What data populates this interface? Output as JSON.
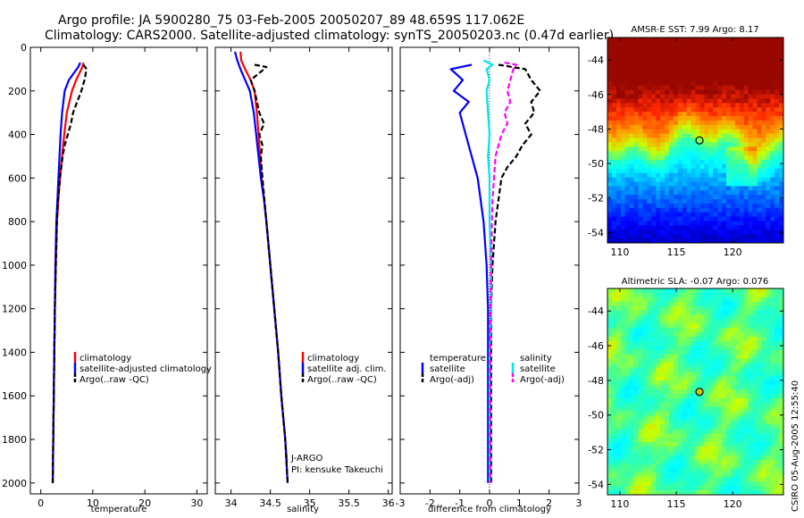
{
  "header": {
    "line1": "Argo profile: JA 5900280_75 03-Feb-2005 20050207_89 48.659S 117.062E",
    "line2": "Climatology: CARS2000. Satellite-adjusted climatology: synTS_20050203.nc (0.47d earlier)"
  },
  "side_label": "CSIRO 05-Aug-2005 12:55:40",
  "colors": {
    "climatology": "#ff0000",
    "satellite": "#0000ff",
    "argo": "#000000",
    "salinity_satellite": "#00e5ee",
    "salinity_argo": "#ff00ff"
  },
  "chart_data": [
    {
      "type": "line",
      "id": "temperature",
      "xlabel": "temperature",
      "ylabel": "",
      "xlim": [
        -2,
        32
      ],
      "ylim": [
        2050,
        0
      ],
      "xticks": [
        0,
        10,
        20,
        30
      ],
      "yticks": [
        0,
        200,
        400,
        600,
        800,
        1000,
        1200,
        1400,
        1600,
        1800,
        2000
      ],
      "series": [
        {
          "name": "climatology",
          "color": "#ff0000",
          "dash": "",
          "depth": [
            70,
            90,
            110,
            150,
            200,
            300,
            400,
            500,
            600,
            700,
            800,
            1000,
            1200,
            1400,
            1600,
            1800,
            2000
          ],
          "values": [
            8.2,
            8.0,
            7.6,
            6.8,
            6.0,
            5.0,
            4.5,
            4.1,
            3.7,
            3.4,
            3.1,
            2.9,
            2.7,
            2.6,
            2.5,
            2.4,
            2.3
          ]
        },
        {
          "name": "satellite-adjusted climatology",
          "color": "#0000ff",
          "dash": "",
          "depth": [
            70,
            90,
            110,
            150,
            200,
            300,
            400,
            500,
            600,
            700,
            800,
            1000,
            1200,
            1400,
            1600,
            1800,
            2000
          ],
          "values": [
            7.6,
            7.2,
            6.6,
            5.4,
            4.6,
            4.1,
            3.8,
            3.6,
            3.4,
            3.2,
            3.0,
            2.8,
            2.7,
            2.6,
            2.5,
            2.4,
            2.3
          ]
        },
        {
          "name": "Argo(..raw -QC)",
          "color": "#000000",
          "dash": "6,3",
          "depth": [
            80,
            100,
            150,
            200,
            250,
            300,
            350,
            400,
            450,
            500,
            600,
            700,
            800,
            1000,
            1200,
            1400,
            1600,
            1800,
            2000
          ],
          "values": [
            8.2,
            8.8,
            8.4,
            7.8,
            7.0,
            6.2,
            5.8,
            5.2,
            4.6,
            4.2,
            3.7,
            3.3,
            3.1,
            2.9,
            2.7,
            2.6,
            2.5,
            2.4,
            2.3
          ]
        }
      ],
      "legend": [
        "climatology",
        "satellite-adjusted climatology",
        "Argo(..raw -QC)"
      ]
    },
    {
      "type": "line",
      "id": "salinity",
      "xlabel": "salinity",
      "ylabel": "",
      "xlim": [
        33.8,
        36.05
      ],
      "ylim": [
        2050,
        0
      ],
      "xticks": [
        34,
        34.5,
        35,
        35.5,
        36
      ],
      "series": [
        {
          "name": "climatology",
          "color": "#ff0000",
          "dash": "",
          "depth": [
            20,
            60,
            100,
            150,
            200,
            300,
            400,
            500,
            600,
            700,
            800,
            1000,
            1200,
            1400,
            1600,
            1800,
            1900
          ],
          "values": [
            34.12,
            34.13,
            34.18,
            34.25,
            34.3,
            34.33,
            34.35,
            34.37,
            34.39,
            34.42,
            34.45,
            34.5,
            34.55,
            34.6,
            34.64,
            34.69,
            34.71
          ]
        },
        {
          "name": "satellite adj. clim.",
          "color": "#0000ff",
          "dash": "",
          "depth": [
            20,
            60,
            100,
            150,
            200,
            300,
            400,
            500,
            600,
            700,
            800,
            1000,
            1200,
            1400,
            1600,
            1800,
            2000
          ],
          "values": [
            34.05,
            34.08,
            34.12,
            34.18,
            34.24,
            34.29,
            34.32,
            34.35,
            34.38,
            34.42,
            34.45,
            34.5,
            34.55,
            34.6,
            34.64,
            34.69,
            34.72
          ]
        },
        {
          "name": "Argo(..raw -QC)",
          "color": "#000000",
          "dash": "6,3",
          "depth": [
            80,
            90,
            100,
            150,
            200,
            300,
            350,
            400,
            450,
            500,
            600,
            800,
            1000,
            1200,
            1400,
            1600,
            1800,
            2000
          ],
          "values": [
            34.3,
            34.45,
            34.42,
            34.25,
            34.3,
            34.36,
            34.42,
            34.36,
            34.4,
            34.38,
            34.4,
            34.45,
            34.5,
            34.55,
            34.6,
            34.64,
            34.69,
            34.72
          ]
        }
      ],
      "legend": [
        "climatology",
        "satellite adj. clim.",
        "Argo(..raw -QC)"
      ],
      "annotations": [
        "J-ARGO",
        "PI: kensuke Takeuchi"
      ]
    },
    {
      "type": "line",
      "id": "difference",
      "xlabel": "difference from climatology",
      "ylabel": "",
      "xlim": [
        -3,
        3
      ],
      "ylim": [
        2050,
        0
      ],
      "xticks": [
        -3,
        -2,
        -1,
        0,
        1,
        2,
        3
      ],
      "series": [
        {
          "name": "temperature satellite",
          "color": "#0000ff",
          "dash": "",
          "depth": [
            80,
            100,
            150,
            200,
            250,
            300,
            400,
            500,
            600,
            700,
            800,
            1000,
            1200,
            1400,
            1600,
            1800,
            2000
          ],
          "values": [
            -0.6,
            -1.3,
            -0.9,
            -1.2,
            -0.7,
            -1.0,
            -0.8,
            -0.6,
            -0.4,
            -0.3,
            -0.2,
            -0.1,
            -0.05,
            -0.05,
            -0.05,
            -0.05,
            -0.05
          ]
        },
        {
          "name": "temperature Argo(-adj)",
          "color": "#000000",
          "dash": "6,3",
          "depth": [
            80,
            100,
            150,
            200,
            250,
            300,
            350,
            400,
            450,
            500,
            550,
            600,
            700,
            800,
            1000,
            1200,
            1400,
            1600,
            1800,
            2000
          ],
          "values": [
            0.3,
            1.2,
            1.4,
            1.7,
            1.4,
            1.5,
            1.2,
            1.4,
            1.1,
            0.9,
            0.6,
            0.4,
            0.3,
            0.2,
            0.1,
            0.05,
            0.05,
            0.05,
            0.05,
            0.05
          ]
        },
        {
          "name": "salinity satellite",
          "color": "#00e5ee",
          "dash": "",
          "depth": [
            60,
            80,
            100,
            150,
            200,
            300,
            400,
            500,
            600,
            800,
            1000,
            1200,
            1400,
            1600,
            1800,
            2000
          ],
          "values": [
            -0.2,
            0.1,
            -0.1,
            0,
            -0.1,
            -0.05,
            0,
            -0.05,
            0,
            0,
            0.05,
            0.05,
            0,
            0,
            0,
            0
          ]
        },
        {
          "name": "salinity Argo(-adj)",
          "color": "#ff00ff",
          "dash": "6,3",
          "depth": [
            70,
            80,
            100,
            150,
            200,
            250,
            300,
            350,
            400,
            450,
            500,
            600,
            700,
            800,
            1000,
            1200,
            1400,
            1600,
            1800,
            2000
          ],
          "values": [
            0.5,
            0.9,
            0.8,
            0.7,
            0.6,
            0.7,
            0.5,
            0.6,
            0.4,
            0.3,
            0.2,
            0.15,
            0.1,
            0.08,
            0.05,
            0.03,
            0.02,
            0.02,
            0.02,
            0.02
          ]
        }
      ],
      "legend_left": {
        "header": "temperature",
        "items": [
          "satellite",
          "Argo(-adj)"
        ]
      },
      "legend_right": {
        "header": "salinity",
        "items": [
          "satellite",
          "Argo(-adj)"
        ]
      }
    },
    {
      "type": "heatmap",
      "id": "sst-map",
      "title": "AMSR-E SST: 7.99 Argo: 8.17",
      "xticks": [
        110,
        115,
        120
      ],
      "yticks": [
        -44,
        -46,
        -48,
        -50,
        -52,
        -54
      ],
      "xlim": [
        108.9,
        124.5
      ],
      "ylim": [
        -54.6,
        -42.7
      ],
      "marker": {
        "lon": 117.06,
        "lat": -48.66
      }
    },
    {
      "type": "heatmap",
      "id": "sla-map",
      "title": "Altimetric SLA: -0.07 Argo: 0.076",
      "xticks": [
        110,
        115,
        120
      ],
      "yticks": [
        -44,
        -46,
        -48,
        -50,
        -52,
        -54
      ],
      "xlim": [
        108.9,
        124.5
      ],
      "ylim": [
        -54.6,
        -42.7
      ],
      "marker": {
        "lon": 117.06,
        "lat": -48.66
      }
    }
  ]
}
